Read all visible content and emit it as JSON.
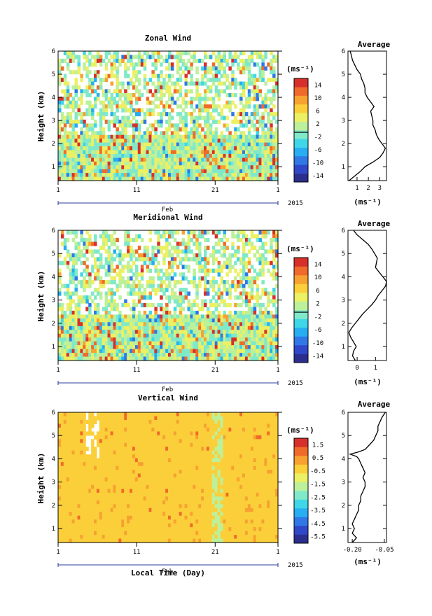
{
  "time_axis": {
    "label": "Local Time (Day)",
    "month": "Feb",
    "year": "2015",
    "tick_days": [
      1,
      11,
      21,
      1
    ],
    "xlim_days": [
      1,
      29
    ]
  },
  "colormap": [
    "#2a2f8e",
    "#2f47c9",
    "#2f78e6",
    "#27aef2",
    "#3fd7e7",
    "#7fe9c9",
    "#bdf09a",
    "#ecf063",
    "#fbcf3a",
    "#f7a130",
    "#f06a2a",
    "#d7302a"
  ],
  "chart_data": [
    {
      "type": "heatmap",
      "title": "Zonal Wind",
      "ylabel": "Height (km)",
      "ylim": [
        0.4,
        6
      ],
      "y_ticks": [
        "1",
        "2",
        "3",
        "4",
        "5",
        "6"
      ],
      "colorbar": {
        "unit": "(ms⁻¹)",
        "ticks": [
          "14",
          "10",
          "6",
          "2",
          "-2",
          "-6",
          "-10",
          "-14"
        ],
        "range": [
          -16,
          16
        ]
      },
      "profile": {
        "title": "Average",
        "xlabel": "(ms⁻¹)",
        "xlim": [
          0.2,
          3.6
        ],
        "x_ticks": [
          "1",
          "2",
          "3"
        ],
        "heights": [
          0.4,
          0.6,
          0.8,
          1.0,
          1.2,
          1.4,
          1.6,
          1.8,
          2.0,
          2.2,
          2.4,
          2.6,
          2.8,
          3.0,
          3.2,
          3.4,
          3.6,
          3.8,
          4.0,
          4.2,
          4.4,
          4.6,
          4.8,
          5.0,
          5.2,
          5.4,
          5.6,
          5.8,
          6.0
        ],
        "values": [
          0.3,
          0.8,
          1.3,
          1.7,
          2.4,
          3.0,
          3.3,
          3.5,
          3.2,
          2.9,
          2.7,
          2.6,
          2.4,
          2.4,
          2.3,
          2.2,
          2.5,
          2.2,
          1.9,
          1.7,
          1.7,
          1.6,
          1.4,
          1.3,
          1.0,
          0.8,
          0.6,
          0.5,
          0.4
        ]
      }
    },
    {
      "type": "heatmap",
      "title": "Meridional Wind",
      "ylabel": "Height (km)",
      "ylim": [
        0.4,
        6
      ],
      "y_ticks": [
        "1",
        "2",
        "3",
        "4",
        "5",
        "6"
      ],
      "colorbar": {
        "unit": "(ms⁻¹)",
        "ticks": [
          "14",
          "10",
          "6",
          "2",
          "-2",
          "-6",
          "-10",
          "-14"
        ],
        "range": [
          -16,
          16
        ]
      },
      "profile": {
        "title": "Average",
        "xlabel": "(ms⁻¹)",
        "xlim": [
          -0.5,
          1.6
        ],
        "x_ticks": [
          "0",
          "1"
        ],
        "heights": [
          0.4,
          0.6,
          0.8,
          1.0,
          1.2,
          1.4,
          1.6,
          1.8,
          2.0,
          2.2,
          2.4,
          2.6,
          2.8,
          3.0,
          3.2,
          3.4,
          3.6,
          3.8,
          4.0,
          4.2,
          4.4,
          4.6,
          4.8,
          5.0,
          5.2,
          5.4,
          5.6,
          5.8,
          6.0
        ],
        "values": [
          -0.1,
          -0.25,
          -0.2,
          -0.05,
          -0.2,
          -0.35,
          -0.45,
          -0.3,
          -0.1,
          0.1,
          0.3,
          0.55,
          0.8,
          1.0,
          1.15,
          1.35,
          1.55,
          1.6,
          1.4,
          1.2,
          1.0,
          1.05,
          1.1,
          0.95,
          0.8,
          0.6,
          0.3,
          0.0,
          -0.2
        ]
      }
    },
    {
      "type": "heatmap",
      "title": "Vertical Wind",
      "ylabel": "Height (km)",
      "ylim": [
        0.4,
        6
      ],
      "y_ticks": [
        "1",
        "2",
        "3",
        "4",
        "5",
        "6"
      ],
      "colorbar": {
        "unit": "(ms⁻¹)",
        "ticks": [
          "1.5",
          "0.5",
          "-0.5",
          "-1.5",
          "-2.5",
          "-3.5",
          "-4.5",
          "-5.5"
        ],
        "range": [
          -6,
          2
        ]
      },
      "profile": {
        "title": "Average",
        "xlabel": "(ms⁻¹)",
        "xlim": [
          -0.22,
          -0.04
        ],
        "x_ticks": [
          "-0.20",
          "-0.05"
        ],
        "heights": [
          0.4,
          0.6,
          0.8,
          1.0,
          1.2,
          1.4,
          1.6,
          1.8,
          2.0,
          2.2,
          2.4,
          2.6,
          2.8,
          3.0,
          3.2,
          3.4,
          3.6,
          3.8,
          4.0,
          4.1,
          4.2,
          4.3,
          4.4,
          4.6,
          4.8,
          5.0,
          5.2,
          5.4,
          5.6,
          5.8,
          6.0
        ],
        "values": [
          -0.2,
          -0.18,
          -0.2,
          -0.19,
          -0.2,
          -0.19,
          -0.18,
          -0.17,
          -0.17,
          -0.16,
          -0.16,
          -0.15,
          -0.14,
          -0.14,
          -0.15,
          -0.14,
          -0.15,
          -0.16,
          -0.17,
          -0.18,
          -0.21,
          -0.17,
          -0.14,
          -0.12,
          -0.1,
          -0.09,
          -0.08,
          -0.08,
          -0.07,
          -0.06,
          -0.045
        ]
      }
    }
  ]
}
